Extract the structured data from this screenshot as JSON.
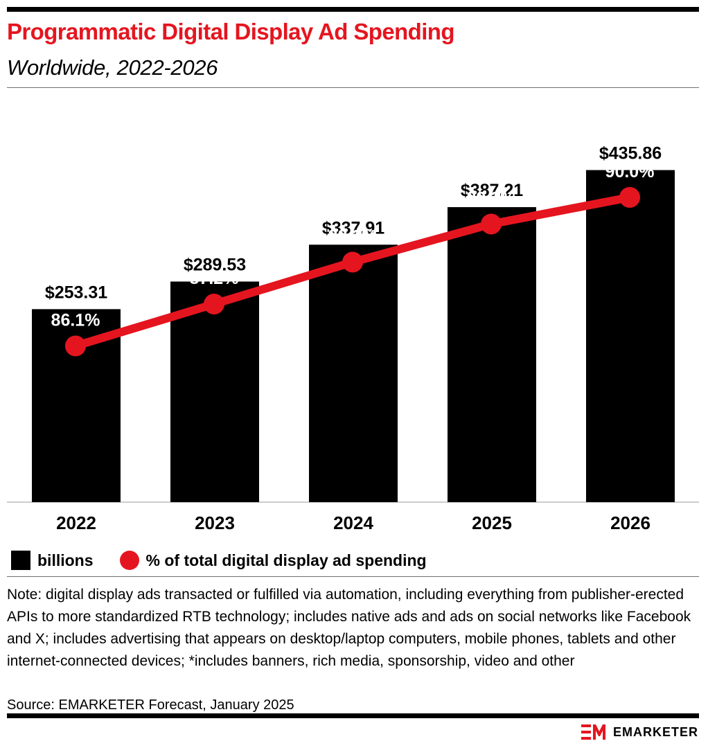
{
  "header": {
    "title": "Programmatic Digital Display Ad Spending",
    "subtitle": "Worldwide, 2022-2026"
  },
  "chart_data": {
    "type": "bar",
    "categories": [
      "2022",
      "2023",
      "2024",
      "2025",
      "2026"
    ],
    "series": [
      {
        "name": "billions",
        "kind": "bar",
        "color": "#000000",
        "values": [
          253.31,
          289.53,
          337.91,
          387.21,
          435.86
        ],
        "labels": [
          "$253.31",
          "$289.53",
          "$337.91",
          "$387.21",
          "$435.86"
        ]
      },
      {
        "name": "% of total digital display ad spending",
        "kind": "line",
        "color": "#e5151f",
        "values": [
          86.1,
          87.2,
          88.3,
          89.3,
          90.0
        ],
        "labels": [
          "86.1%",
          "87.2%",
          "88.3%",
          "89.3%",
          "90.0%"
        ]
      }
    ],
    "title": "Programmatic Digital Display Ad Spending",
    "subtitle": "Worldwide, 2022-2026",
    "ylim": [
      0,
      500
    ],
    "y2lim": [
      82,
      92
    ],
    "grid": false,
    "legend_position": "bottom-left"
  },
  "legend": {
    "bar_label": "billions",
    "line_label": "% of total digital display ad spending"
  },
  "note": "Note: digital display ads transacted or fulfilled via automation, including everything from publisher-erected APIs to more standardized RTB technology; includes native ads and ads on social networks like Facebook and X; includes advertising that appears on desktop/laptop computers, mobile phones, tablets and other internet-connected devices; *includes banners, rich media, sponsorship, video and other",
  "source": "Source: EMARKETER Forecast, January 2025",
  "brand": {
    "name": "EMARKETER",
    "accent_color": "#e5151f"
  }
}
